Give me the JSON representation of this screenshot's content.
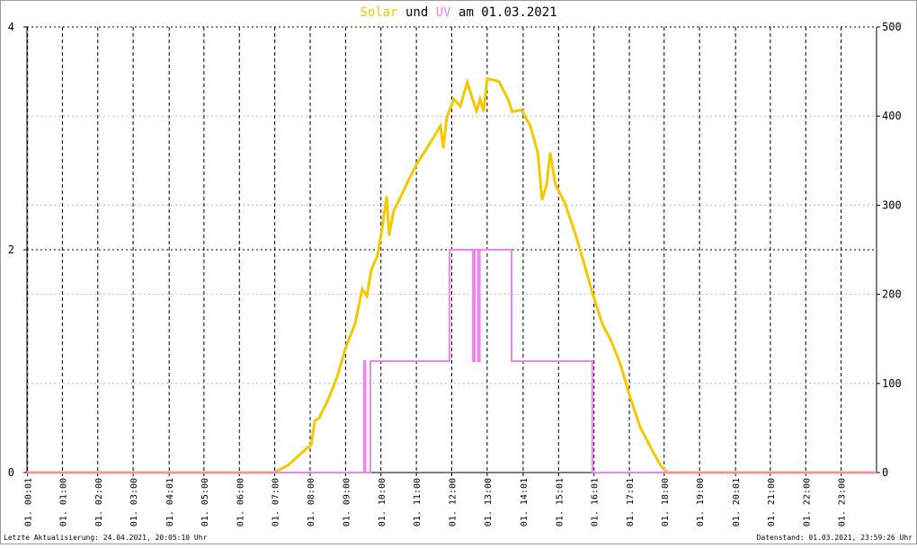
{
  "chart_data": {
    "type": "line",
    "title_join": "und",
    "title_date": "am 01.03.2021",
    "footer_left": "Letzte Aktualisierung: 24.04.2021, 20:05:10 Uhr",
    "footer_right": "Datenstand: 01.03.2021, 23:59:26 Uhr",
    "xlim": [
      0,
      24
    ],
    "xticks": [
      {
        "value": 0.017,
        "label": "01. 00:01"
      },
      {
        "value": 1,
        "label": "01. 01:00"
      },
      {
        "value": 2,
        "label": "01. 02:00"
      },
      {
        "value": 3,
        "label": "01. 03:00"
      },
      {
        "value": 4.017,
        "label": "01. 04:01"
      },
      {
        "value": 5,
        "label": "01. 05:00"
      },
      {
        "value": 6,
        "label": "01. 06:00"
      },
      {
        "value": 7,
        "label": "01. 07:00"
      },
      {
        "value": 8,
        "label": "01. 08:00"
      },
      {
        "value": 9,
        "label": "01. 09:00"
      },
      {
        "value": 10,
        "label": "01. 10:00"
      },
      {
        "value": 11,
        "label": "01. 11:00"
      },
      {
        "value": 12,
        "label": "01. 12:00"
      },
      {
        "value": 13,
        "label": "01. 13:00"
      },
      {
        "value": 14.017,
        "label": "01. 14:01"
      },
      {
        "value": 15.017,
        "label": "01. 15:01"
      },
      {
        "value": 16.017,
        "label": "01. 16:01"
      },
      {
        "value": 17.017,
        "label": "01. 17:01"
      },
      {
        "value": 18,
        "label": "01. 18:00"
      },
      {
        "value": 19,
        "label": "01. 19:00"
      },
      {
        "value": 20.017,
        "label": "01. 20:01"
      },
      {
        "value": 21,
        "label": "01. 21:00"
      },
      {
        "value": 22,
        "label": "01. 22:00"
      },
      {
        "value": 23,
        "label": "01. 23:00"
      }
    ],
    "ylim": [
      0,
      4
    ],
    "yticks": [
      0,
      2,
      4
    ],
    "y2lim": [
      0,
      500
    ],
    "y2ticks": [
      0,
      100,
      200,
      300,
      400,
      500
    ],
    "grid": true,
    "series": [
      {
        "name": "Solar",
        "color": "#f5c800",
        "axis": "y2",
        "x": [
          0,
          6.98,
          7.37,
          7.87,
          8.03,
          8.13,
          8.25,
          8.51,
          8.76,
          9.02,
          9.27,
          9.47,
          9.6,
          9.73,
          9.9,
          10.03,
          10.16,
          10.23,
          10.36,
          10.54,
          10.79,
          11.05,
          11.3,
          11.56,
          11.68,
          11.76,
          11.86,
          12.06,
          12.24,
          12.44,
          12.57,
          12.7,
          12.8,
          12.9,
          13.0,
          13.33,
          13.59,
          13.71,
          13.97,
          14.22,
          14.43,
          14.55,
          14.68,
          14.78,
          14.93,
          15.19,
          15.49,
          15.75,
          16.0,
          16.25,
          16.51,
          16.76,
          17.02,
          17.32,
          17.65,
          17.9,
          18.08,
          24
        ],
        "values": [
          0,
          0,
          8,
          26,
          31,
          58,
          61,
          82,
          107,
          142,
          167,
          206,
          198,
          228,
          243,
          273,
          310,
          266,
          294,
          308,
          329,
          349,
          364,
          381,
          389,
          364,
          399,
          419,
          411,
          438,
          421,
          406,
          419,
          405,
          442,
          439,
          419,
          405,
          407,
          389,
          359,
          306,
          323,
          359,
          323,
          303,
          268,
          233,
          198,
          167,
          147,
          122,
          87,
          51,
          26,
          8,
          0,
          0
        ]
      },
      {
        "name": "UV",
        "color": "#ee82ee",
        "axis": "y",
        "x": [
          0,
          9.52,
          9.52,
          9.56,
          9.56,
          9.7,
          9.7,
          11.94,
          11.94,
          12.6,
          12.6,
          12.65,
          12.65,
          12.74,
          12.74,
          12.79,
          12.79,
          13.69,
          13.69,
          15.97,
          15.97,
          24
        ],
        "values": [
          0,
          0,
          1,
          1,
          0,
          0,
          1,
          1,
          2,
          2,
          1,
          1,
          2,
          2,
          1,
          1,
          2,
          2,
          1,
          1,
          0,
          0
        ]
      }
    ]
  }
}
